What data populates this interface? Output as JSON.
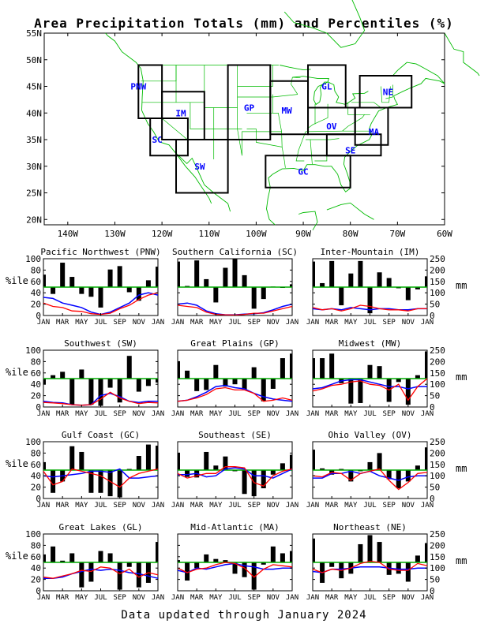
{
  "title": "Area Precipitation Totals (mm) and Percentiles (%)",
  "footer": "Data updated through January 2024",
  "colors": {
    "pct_line": "#0000ff",
    "bars": "#000000",
    "mm_line": "#ff0000",
    "ref_line": "#00aa00",
    "map_coast": "#00bb00",
    "region_box": "#000000",
    "region_label": "#0000ff"
  },
  "map": {
    "lat_labels": [
      "55N",
      "50N",
      "45N",
      "40N",
      "35N",
      "30N",
      "25N",
      "20N"
    ],
    "lon_labels": [
      "140W",
      "130W",
      "120W",
      "110W",
      "100W",
      "90W",
      "80W",
      "70W",
      "60W"
    ],
    "regions": [
      "PNW",
      "SC",
      "IM",
      "SW",
      "GP",
      "MW",
      "GL",
      "OV",
      "SE",
      "GC",
      "MA",
      "NE"
    ]
  },
  "panel_axes": {
    "left_label": "%ile",
    "right_label": "mm",
    "left_ticks": [
      "0",
      "20",
      "40",
      "60",
      "80",
      "100"
    ],
    "right_ticks": [
      "0",
      "50",
      "100",
      "150",
      "200",
      "250"
    ],
    "x_ticks": [
      "JAN",
      "MAR",
      "MAY",
      "JUL",
      "SEP",
      "NOV",
      "JAN"
    ]
  },
  "chart_data": [
    {
      "type": "bar",
      "title": "Pacific Northwest (PNW)",
      "x": [
        "JAN",
        "FEB",
        "MAR",
        "APR",
        "MAY",
        "JUN",
        "JUL",
        "AUG",
        "SEP",
        "OCT",
        "NOV",
        "DEC",
        "JAN"
      ],
      "percentile": [
        72,
        38,
        93,
        68,
        38,
        33,
        14,
        81,
        87,
        41,
        26,
        62,
        86
      ],
      "precip_mm": [
        55,
        40,
        35,
        20,
        18,
        8,
        5,
        10,
        30,
        45,
        70,
        90,
        100
      ],
      "normal_mm": [
        80,
        75,
        55,
        45,
        35,
        15,
        5,
        15,
        35,
        55,
        90,
        100,
        90
      ]
    },
    {
      "type": "bar",
      "title": "Southern California (SC)",
      "x": [
        "JAN",
        "FEB",
        "MAR",
        "APR",
        "MAY",
        "JUN",
        "JUL",
        "AUG",
        "SEP",
        "OCT",
        "NOV",
        "DEC",
        "JAN"
      ],
      "percentile": [
        95,
        52,
        97,
        64,
        23,
        84,
        100,
        71,
        12,
        29,
        51,
        50,
        55
      ],
      "precip_mm": [
        45,
        40,
        35,
        15,
        5,
        3,
        2,
        5,
        10,
        10,
        20,
        30,
        40
      ],
      "normal_mm": [
        50,
        55,
        45,
        20,
        8,
        3,
        3,
        6,
        8,
        12,
        25,
        40,
        50
      ]
    },
    {
      "type": "bar",
      "title": "Inter-Mountain (IM)",
      "x": [
        "JAN",
        "FEB",
        "MAR",
        "APR",
        "MAY",
        "JUN",
        "JUL",
        "AUG",
        "SEP",
        "OCT",
        "NOV",
        "DEC",
        "JAN"
      ],
      "percentile": [
        95,
        57,
        96,
        18,
        74,
        96,
        4,
        76,
        66,
        48,
        27,
        46,
        69
      ],
      "precip_mm": [
        35,
        25,
        30,
        20,
        30,
        45,
        40,
        30,
        25,
        25,
        20,
        30,
        30
      ],
      "normal_mm": [
        30,
        25,
        30,
        25,
        35,
        30,
        25,
        30,
        30,
        25,
        25,
        30,
        30
      ]
    },
    {
      "type": "bar",
      "title": "Southwest (SW)",
      "x": [
        "JAN",
        "FEB",
        "MAR",
        "APR",
        "MAY",
        "JUN",
        "JUL",
        "AUG",
        "SEP",
        "OCT",
        "NOV",
        "DEC",
        "JAN"
      ],
      "percentile": [
        40,
        56,
        62,
        4,
        66,
        4,
        2,
        34,
        8,
        90,
        27,
        37,
        43
      ],
      "precip_mm": [
        20,
        18,
        15,
        10,
        8,
        10,
        35,
        65,
        40,
        25,
        15,
        20,
        18
      ],
      "normal_mm": [
        25,
        20,
        18,
        10,
        8,
        10,
        50,
        60,
        45,
        25,
        20,
        25,
        25
      ]
    },
    {
      "type": "bar",
      "title": "Great Plains (GP)",
      "x": [
        "JAN",
        "FEB",
        "MAR",
        "APR",
        "MAY",
        "JUN",
        "JUL",
        "AUG",
        "SEP",
        "OCT",
        "NOV",
        "DEC",
        "JAN"
      ],
      "percentile": [
        80,
        64,
        28,
        30,
        74,
        36,
        40,
        31,
        70,
        10,
        32,
        86,
        94
      ],
      "precip_mm": [
        25,
        30,
        40,
        55,
        80,
        85,
        75,
        75,
        60,
        25,
        30,
        40,
        30
      ],
      "normal_mm": [
        25,
        30,
        45,
        65,
        90,
        95,
        85,
        80,
        60,
        45,
        35,
        30,
        25
      ]
    },
    {
      "type": "bar",
      "title": "Midwest (MW)",
      "x": [
        "JAN",
        "FEB",
        "MAR",
        "APR",
        "MAY",
        "JUN",
        "JUL",
        "AUG",
        "SEP",
        "OCT",
        "NOV",
        "DEC",
        "JAN"
      ],
      "percentile": [
        86,
        86,
        94,
        42,
        6,
        7,
        74,
        72,
        9,
        44,
        4,
        56,
        98
      ],
      "precip_mm": [
        70,
        80,
        95,
        100,
        110,
        115,
        100,
        95,
        75,
        100,
        30,
        90,
        125
      ],
      "normal_mm": [
        80,
        85,
        100,
        115,
        120,
        120,
        110,
        100,
        90,
        90,
        80,
        90,
        90
      ]
    },
    {
      "type": "bar",
      "title": "Gulf Coast (GC)",
      "x": [
        "JAN",
        "FEB",
        "MAR",
        "APR",
        "MAY",
        "JUN",
        "JUL",
        "AUG",
        "SEP",
        "OCT",
        "NOV",
        "DEC",
        "JAN"
      ],
      "percentile": [
        64,
        10,
        30,
        92,
        82,
        10,
        10,
        4,
        2,
        52,
        75,
        95,
        93
      ],
      "precip_mm": [
        120,
        60,
        75,
        130,
        120,
        110,
        100,
        75,
        50,
        90,
        110,
        120,
        130
      ],
      "normal_mm": [
        100,
        95,
        100,
        105,
        110,
        120,
        120,
        115,
        130,
        90,
        90,
        95,
        100
      ]
    },
    {
      "type": "bar",
      "title": "Southeast (SE)",
      "x": [
        "JAN",
        "FEB",
        "MAR",
        "APR",
        "MAY",
        "JUN",
        "JUL",
        "AUG",
        "SEP",
        "OCT",
        "NOV",
        "DEC",
        "JAN"
      ],
      "percentile": [
        80,
        38,
        37,
        82,
        58,
        74,
        48,
        8,
        4,
        18,
        42,
        62,
        77
      ],
      "precip_mm": [
        110,
        90,
        100,
        110,
        110,
        140,
        140,
        135,
        70,
        55,
        100,
        120,
        130
      ],
      "normal_mm": [
        105,
        105,
        110,
        95,
        100,
        130,
        135,
        130,
        100,
        100,
        90,
        110,
        130
      ]
    },
    {
      "type": "bar",
      "title": "Ohio Valley (OV)",
      "x": [
        "JAN",
        "FEB",
        "MAR",
        "APR",
        "MAY",
        "JUN",
        "JUL",
        "AUG",
        "SEP",
        "OCT",
        "NOV",
        "DEC",
        "JAN"
      ],
      "percentile": [
        86,
        53,
        42,
        52,
        30,
        48,
        64,
        80,
        34,
        18,
        30,
        58,
        90
      ],
      "precip_mm": [
        100,
        95,
        115,
        110,
        80,
        110,
        120,
        130,
        80,
        40,
        70,
        110,
        115
      ],
      "normal_mm": [
        90,
        90,
        110,
        110,
        120,
        110,
        120,
        100,
        90,
        80,
        95,
        100,
        100
      ]
    },
    {
      "type": "bar",
      "title": "Great Lakes (GL)",
      "x": [
        "JAN",
        "FEB",
        "MAR",
        "APR",
        "MAY",
        "JUN",
        "JUL",
        "AUG",
        "SEP",
        "OCT",
        "NOV",
        "DEC",
        "JAN"
      ],
      "percentile": [
        64,
        78,
        53,
        66,
        6,
        16,
        70,
        66,
        2,
        42,
        6,
        14,
        86
      ],
      "precip_mm": [
        60,
        55,
        65,
        75,
        90,
        85,
        105,
        100,
        75,
        95,
        60,
        80,
        70
      ],
      "normal_mm": [
        55,
        55,
        60,
        75,
        85,
        95,
        90,
        95,
        90,
        80,
        75,
        65,
        55
      ]
    },
    {
      "type": "bar",
      "title": "Mid-Atlantic (MA)",
      "x": [
        "JAN",
        "FEB",
        "MAR",
        "APR",
        "MAY",
        "JUN",
        "JUL",
        "AUG",
        "SEP",
        "OCT",
        "NOV",
        "DEC",
        "JAN"
      ],
      "percentile": [
        54,
        18,
        40,
        64,
        56,
        54,
        30,
        24,
        2,
        46,
        78,
        66,
        70
      ],
      "precip_mm": [
        100,
        80,
        95,
        100,
        115,
        125,
        120,
        100,
        60,
        95,
        115,
        110,
        105
      ],
      "normal_mm": [
        90,
        80,
        100,
        95,
        105,
        115,
        120,
        110,
        105,
        95,
        95,
        100,
        100
      ]
    },
    {
      "type": "bar",
      "title": "Northeast (NE)",
      "x": [
        "JAN",
        "FEB",
        "MAR",
        "APR",
        "MAY",
        "JUN",
        "JUL",
        "AUG",
        "SEP",
        "OCT",
        "NOV",
        "DEC",
        "JAN"
      ],
      "percentile": [
        92,
        14,
        42,
        22,
        30,
        82,
        98,
        86,
        28,
        30,
        16,
        62,
        84
      ],
      "precip_mm": [
        95,
        80,
        95,
        90,
        100,
        120,
        130,
        125,
        95,
        90,
        90,
        120,
        110
      ],
      "normal_mm": [
        85,
        80,
        95,
        95,
        100,
        105,
        105,
        105,
        100,
        95,
        95,
        100,
        100
      ]
    }
  ]
}
